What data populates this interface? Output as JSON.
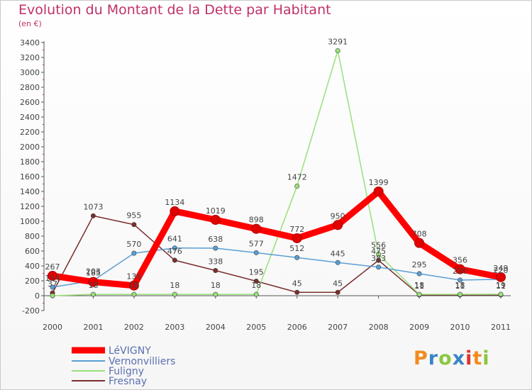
{
  "header": {
    "title": "Evolution du Montant de la Dette par Habitant",
    "subtitle": "(en €)"
  },
  "logo": {
    "letters": [
      "P",
      "r",
      "o",
      "x",
      "i",
      "t",
      "i"
    ],
    "colors": [
      "#f28c1e",
      "#3a84c6",
      "#8cc63f",
      "#3a84c6",
      "#e2332e",
      "#f28c1e",
      "#8cc63f"
    ]
  },
  "chart_data": {
    "type": "line",
    "title": "Evolution du Montant de la Dette par Habitant",
    "subtitle": "(en €)",
    "x": [
      "2000",
      "2001",
      "2002",
      "2003",
      "2004",
      "2005",
      "2006",
      "2007",
      "2008",
      "2009",
      "2010",
      "2011"
    ],
    "ylim": [
      -200,
      3400
    ],
    "yticks": [
      -200,
      0,
      200,
      400,
      600,
      800,
      1000,
      1200,
      1400,
      1600,
      1800,
      2000,
      2200,
      2400,
      2600,
      2800,
      3000,
      3200,
      3400
    ],
    "grid": false,
    "legend_position": "bottom-left",
    "series": [
      {
        "name": "LéVIGNY",
        "color": "#ff0000",
        "values": [
          267,
          185,
          136,
          1134,
          1019,
          898,
          772,
          950,
          1399,
          708,
          356,
          249
        ]
      },
      {
        "name": "Vernonvilliers",
        "color": "#5a9fd4",
        "values": [
          114,
          203,
          570,
          641,
          638,
          577,
          512,
          445,
          383,
          295,
          210,
          220
        ]
      },
      {
        "name": "Fuligny",
        "color": "#99e07a",
        "values": [
          0,
          18,
          18,
          18,
          18,
          18,
          1472,
          3291,
          556,
          18,
          18,
          19
        ]
      },
      {
        "name": "Fresnay",
        "color": "#7b2e2e",
        "values": [
          37,
          1073,
          955,
          476,
          338,
          195,
          45,
          45,
          475,
          11,
          11,
          11
        ]
      }
    ]
  }
}
